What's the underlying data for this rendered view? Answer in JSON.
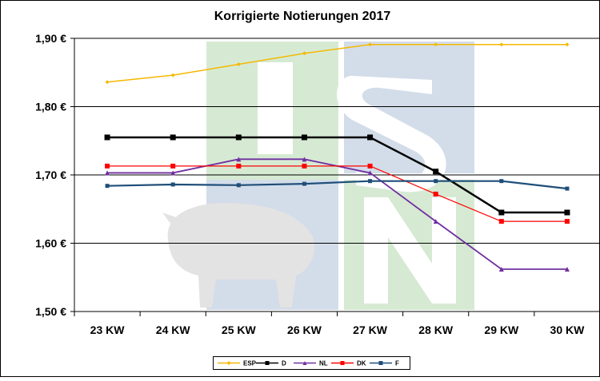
{
  "chart_data": {
    "type": "line",
    "title": "Korrigierte Notierungen 2017",
    "xlabel": "",
    "ylabel": "",
    "categories": [
      "23 KW",
      "24 KW",
      "25 KW",
      "26 KW",
      "27 KW",
      "28 KW",
      "29 KW",
      "30 KW"
    ],
    "ylim": [
      1.5,
      1.9
    ],
    "yticks": [
      1.5,
      1.6,
      1.7,
      1.8,
      1.9
    ],
    "ytick_labels": [
      "1,50 €",
      "1,60 €",
      "1,70 €",
      "1,80 €",
      "1,90 €"
    ],
    "grid": "horizontal",
    "legend_position": "bottom",
    "series": [
      {
        "name": "ESP",
        "color": "#f5b800",
        "marker": "diamond",
        "values": [
          1.836,
          1.846,
          1.862,
          1.878,
          1.891,
          1.891,
          1.891,
          1.891
        ]
      },
      {
        "name": "D",
        "color": "#000000",
        "marker": "square",
        "values": [
          1.755,
          1.755,
          1.755,
          1.755,
          1.755,
          1.705,
          1.645,
          1.645
        ]
      },
      {
        "name": "NL",
        "color": "#7030a0",
        "marker": "triangle",
        "values": [
          1.703,
          1.703,
          1.723,
          1.723,
          1.703,
          1.632,
          1.562,
          1.562
        ]
      },
      {
        "name": "DK",
        "color": "#ff0000",
        "marker": "square",
        "values": [
          1.713,
          1.713,
          1.713,
          1.713,
          1.713,
          1.672,
          1.632,
          1.632
        ]
      },
      {
        "name": "F",
        "color": "#1f4e79",
        "marker": "square",
        "values": [
          1.684,
          1.686,
          1.685,
          1.687,
          1.691,
          1.691,
          1.691,
          1.68
        ]
      }
    ]
  },
  "watermark": {
    "text": "ISN",
    "colors": {
      "green": "#d6ead3",
      "blue": "#d3dde9"
    }
  }
}
